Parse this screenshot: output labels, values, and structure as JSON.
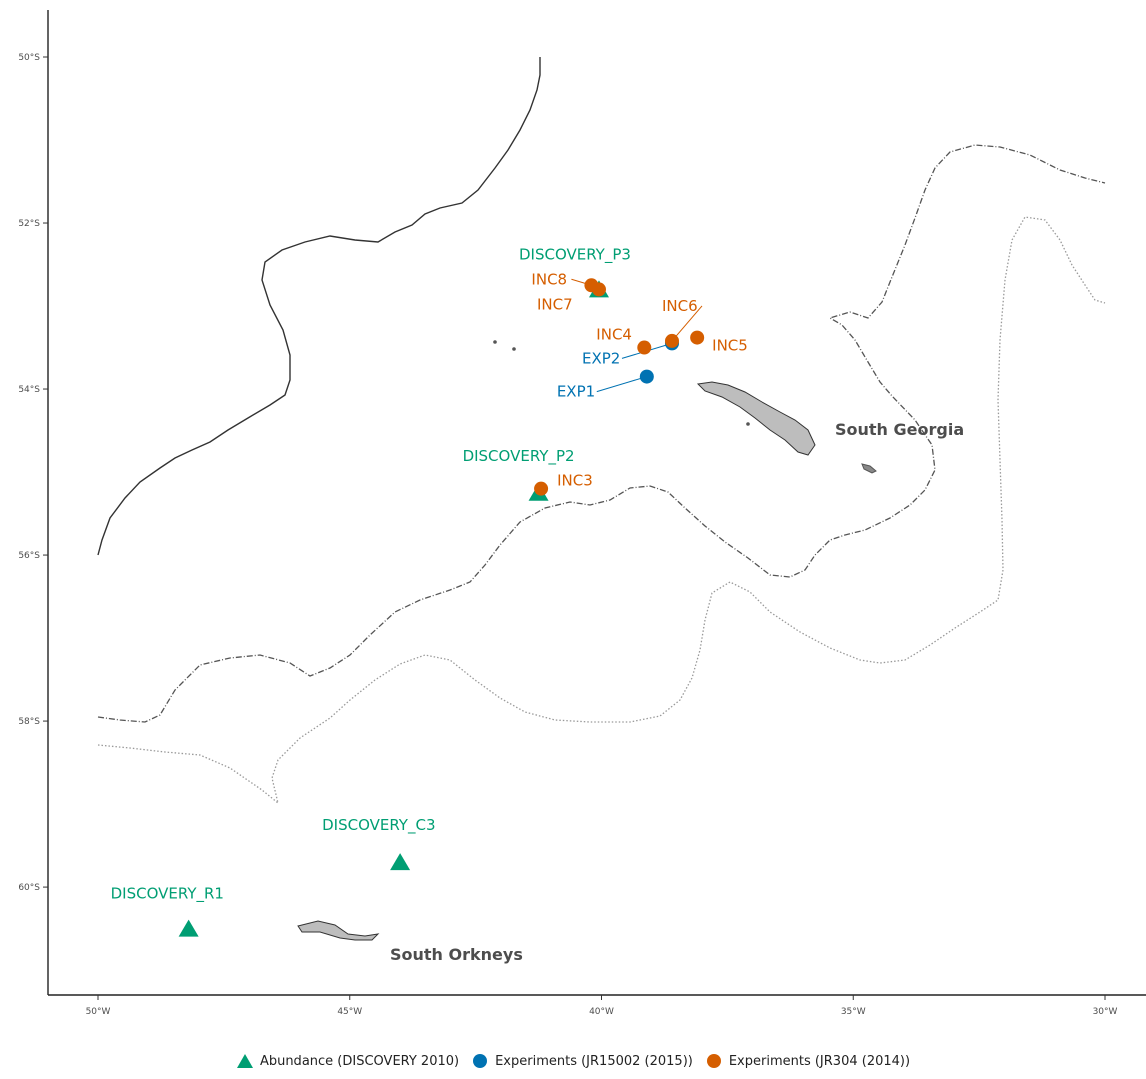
{
  "chart_data": {
    "type": "map",
    "x_ticks": [
      "50°W",
      "45°W",
      "40°W",
      "35°W",
      "30°W"
    ],
    "y_ticks": [
      "50°S",
      "52°S",
      "54°S",
      "56°S",
      "58°S",
      "60°S"
    ],
    "xlim": [
      -50,
      -30
    ],
    "ylim": [
      -61.3,
      -50
    ],
    "regions": [
      {
        "name": "South Georgia",
        "lon": -34.5,
        "lat": -54.55
      },
      {
        "name": "South Orkneys",
        "lon": -43.0,
        "lat": -61.0
      }
    ],
    "series": [
      {
        "name": "Abundance (DISCOVERY 2010)",
        "marker": "triangle",
        "color": "#009E73",
        "points": [
          {
            "label": "DISCOVERY_P3",
            "lon": -40.05,
            "lat": -52.8
          },
          {
            "label": "DISCOVERY_P2",
            "lon": -41.25,
            "lat": -55.25
          },
          {
            "label": "DISCOVERY_C3",
            "lon": -44.0,
            "lat": -59.7
          },
          {
            "label": "DISCOVERY_R1",
            "lon": -48.2,
            "lat": -60.5
          }
        ]
      },
      {
        "name": "Experiments (JR15002 (2015))",
        "marker": "circle",
        "color": "#0072B2",
        "points": [
          {
            "label": "EXP2",
            "lon": -38.6,
            "lat": -53.45
          },
          {
            "label": "EXP1",
            "lon": -39.1,
            "lat": -53.85
          }
        ]
      },
      {
        "name": "Experiments (JR304 (2014))",
        "marker": "circle",
        "color": "#D55E00",
        "points": [
          {
            "label": "INC8",
            "lon": -40.2,
            "lat": -52.75
          },
          {
            "label": "INC7",
            "lon": -40.05,
            "lat": -52.8
          },
          {
            "label": "INC6",
            "lon": -38.6,
            "lat": -53.42
          },
          {
            "label": "INC4",
            "lon": -39.15,
            "lat": -53.5
          },
          {
            "label": "INC5",
            "lon": -38.1,
            "lat": -53.38
          },
          {
            "label": "INC3",
            "lon": -41.2,
            "lat": -55.2
          }
        ]
      }
    ]
  }
}
